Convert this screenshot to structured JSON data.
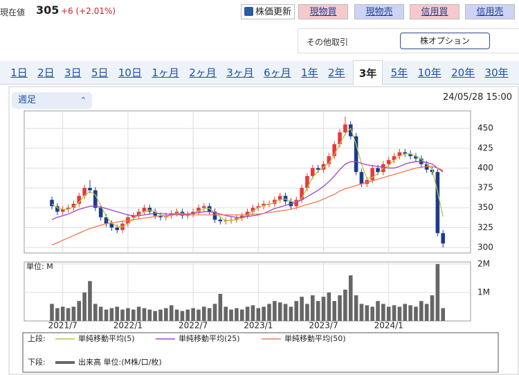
{
  "header": {
    "label": "現在値",
    "price": "305",
    "change": "+6 (+2.01%)"
  },
  "buttons": [
    "株価更新",
    "現物買",
    "現物売",
    "信用買",
    "信用売"
  ],
  "other": {
    "label": "その他取引",
    "button": "株オプション"
  },
  "tabs": [
    "1日",
    "2日",
    "3日",
    "5日",
    "10日",
    "1ヶ月",
    "2ヶ月",
    "3ヶ月",
    "6ヶ月",
    "1年",
    "2年",
    "3年",
    "5年",
    "10年",
    "20年",
    "30年"
  ],
  "selected_tab": 11,
  "interval": "週足",
  "timestamp": "24/05/28 15:00",
  "legend": {
    "upper": "上段:",
    "lower": "下段:"
  },
  "chart_data": {
    "type": "candlestick",
    "categories": [
      null,
      null,
      "2021/7",
      null,
      null,
      null,
      null,
      null,
      null,
      null,
      null,
      null,
      null,
      null,
      "2022/1",
      null,
      null,
      null,
      null,
      null,
      null,
      null,
      null,
      null,
      null,
      null,
      "2022/7",
      null,
      null,
      null,
      null,
      null,
      null,
      null,
      null,
      null,
      null,
      null,
      "2023/1",
      null,
      null,
      null,
      null,
      null,
      null,
      null,
      null,
      null,
      null,
      null,
      "2023/7",
      null,
      null,
      null,
      null,
      null,
      null,
      null,
      null,
      null,
      null,
      null,
      "2024/1",
      null,
      null,
      null,
      null,
      null,
      null,
      null,
      null,
      null,
      null
    ],
    "open": [
      360,
      352,
      345,
      348,
      350,
      355,
      365,
      375,
      372,
      350,
      338,
      330,
      325,
      322,
      330,
      338,
      340,
      345,
      350,
      345,
      340,
      338,
      340,
      343,
      345,
      340,
      342,
      345,
      350,
      352,
      345,
      335,
      333,
      334,
      335,
      337,
      340,
      345,
      350,
      352,
      355,
      355,
      360,
      365,
      358,
      352,
      360,
      375,
      390,
      400,
      398,
      405,
      415,
      430,
      445,
      455,
      440,
      395,
      380,
      385,
      400,
      395,
      405,
      410,
      415,
      420,
      418,
      415,
      412,
      405,
      398,
      395,
      318
    ],
    "high": [
      364,
      356,
      352,
      354,
      359,
      369,
      379,
      385,
      376,
      354,
      342,
      334,
      329,
      334,
      342,
      344,
      349,
      354,
      354,
      349,
      344,
      344,
      347,
      349,
      349,
      346,
      349,
      354,
      356,
      356,
      349,
      339,
      338,
      339,
      341,
      344,
      349,
      354,
      356,
      359,
      359,
      364,
      369,
      369,
      362,
      364,
      379,
      394,
      404,
      404,
      409,
      419,
      434,
      449,
      465,
      459,
      444,
      399,
      389,
      404,
      404,
      409,
      414,
      419,
      424,
      424,
      422,
      419,
      416,
      409,
      402,
      399,
      322
    ],
    "low": [
      348,
      341,
      341,
      344,
      346,
      351,
      361,
      368,
      346,
      334,
      326,
      321,
      318,
      318,
      326,
      334,
      336,
      341,
      341,
      336,
      334,
      334,
      336,
      339,
      336,
      336,
      338,
      341,
      346,
      341,
      331,
      329,
      329,
      330,
      331,
      333,
      336,
      341,
      346,
      348,
      351,
      351,
      356,
      354,
      348,
      348,
      356,
      371,
      386,
      394,
      394,
      401,
      411,
      426,
      441,
      436,
      391,
      376,
      376,
      381,
      391,
      391,
      401,
      406,
      411,
      414,
      411,
      408,
      401,
      394,
      391,
      314,
      300
    ],
    "close": [
      352,
      345,
      348,
      350,
      355,
      365,
      375,
      372,
      350,
      338,
      330,
      325,
      322,
      330,
      338,
      340,
      345,
      350,
      345,
      340,
      338,
      340,
      343,
      345,
      340,
      342,
      345,
      350,
      352,
      345,
      335,
      333,
      334,
      335,
      337,
      340,
      345,
      350,
      352,
      355,
      355,
      360,
      365,
      358,
      352,
      360,
      375,
      390,
      400,
      398,
      405,
      415,
      430,
      445,
      455,
      440,
      395,
      380,
      385,
      400,
      395,
      405,
      410,
      415,
      420,
      418,
      415,
      412,
      405,
      398,
      395,
      318,
      305
    ],
    "up_color": "#e8383d",
    "down_color": "#1d3a8f",
    "ylim": [
      293,
      472
    ],
    "yticks": [
      300,
      325,
      350,
      375,
      400,
      425,
      450
    ],
    "grid": true,
    "series": [
      {
        "name": "単純移動平均(5)",
        "color": "#b5c93a",
        "values": [
          355,
          350,
          348,
          348,
          351,
          357,
          365,
          371,
          366,
          353,
          339,
          331,
          326,
          326,
          330,
          336,
          341,
          345,
          347,
          345,
          341,
          339,
          340,
          343,
          343,
          342,
          343,
          346,
          349,
          349,
          344,
          338,
          334,
          334,
          335,
          337,
          341,
          346,
          350,
          353,
          354,
          357,
          360,
          361,
          358,
          357,
          362,
          375,
          388,
          396,
          401,
          406,
          417,
          430,
          443,
          450,
          430,
          405,
          387,
          388,
          393,
          400,
          403,
          410,
          415,
          418,
          418,
          415,
          411,
          405,
          399,
          370,
          339
        ]
      },
      {
        "name": "単純移動平均(25)",
        "color": "#a040d0",
        "values": [
          335,
          338,
          340,
          342,
          345,
          348,
          350,
          352,
          352,
          351,
          349,
          347,
          345,
          343,
          341,
          340,
          340,
          341,
          342,
          343,
          343,
          342,
          342,
          342,
          342,
          342,
          343,
          344,
          345,
          345,
          344,
          342,
          340,
          339,
          338,
          338,
          339,
          340,
          341,
          343,
          346,
          349,
          351,
          353,
          355,
          357,
          360,
          364,
          368,
          372,
          377,
          383,
          390,
          398,
          405,
          408,
          408,
          406,
          404,
          403,
          402,
          401,
          400,
          400,
          402,
          405,
          407,
          408,
          408,
          407,
          405,
          400,
          395
        ]
      },
      {
        "name": "単純移動平均(50)",
        "color": "#f07850",
        "values": [
          303,
          306,
          309,
          312,
          315,
          318,
          321,
          324,
          326,
          328,
          330,
          331,
          332,
          333,
          334,
          335,
          336,
          337,
          338,
          339,
          340,
          340,
          341,
          341,
          341,
          341,
          341,
          341,
          341,
          341,
          341,
          341,
          341,
          341,
          341,
          341,
          341,
          342,
          342,
          343,
          344,
          345,
          346,
          347,
          348,
          350,
          352,
          354,
          356,
          358,
          361,
          364,
          367,
          371,
          374,
          376,
          378,
          380,
          382,
          384,
          386,
          388,
          390,
          392,
          394,
          396,
          398,
          400,
          401,
          402,
          402,
          400,
          397
        ]
      }
    ],
    "volume": {
      "name": "出来高 単位:(M株/口/枚)",
      "unit_label": "単位: M",
      "color": "#666666",
      "ylim": [
        0,
        2.07
      ],
      "yticks": [
        {
          "value": 1,
          "label": "1M"
        },
        {
          "value": 2,
          "label": "2M"
        }
      ],
      "values": [
        0.6,
        0.45,
        0.5,
        0.45,
        0.5,
        0.7,
        1.0,
        1.4,
        0.6,
        0.5,
        0.4,
        0.45,
        0.5,
        0.4,
        0.45,
        0.4,
        0.5,
        0.45,
        0.4,
        0.35,
        0.4,
        0.45,
        0.55,
        0.4,
        0.35,
        0.4,
        0.45,
        0.4,
        0.5,
        0.45,
        0.6,
        0.95,
        0.5,
        0.4,
        0.45,
        0.4,
        0.5,
        0.55,
        0.45,
        0.5,
        0.6,
        0.7,
        0.65,
        0.6,
        0.5,
        0.7,
        0.85,
        0.6,
        0.9,
        0.7,
        0.85,
        1.0,
        0.7,
        0.9,
        1.1,
        1.6,
        0.9,
        0.6,
        0.55,
        0.5,
        0.7,
        0.6,
        0.5,
        0.55,
        0.5,
        0.6,
        0.55,
        0.5,
        0.7,
        0.6,
        0.9,
        2.0,
        0.45
      ]
    }
  }
}
